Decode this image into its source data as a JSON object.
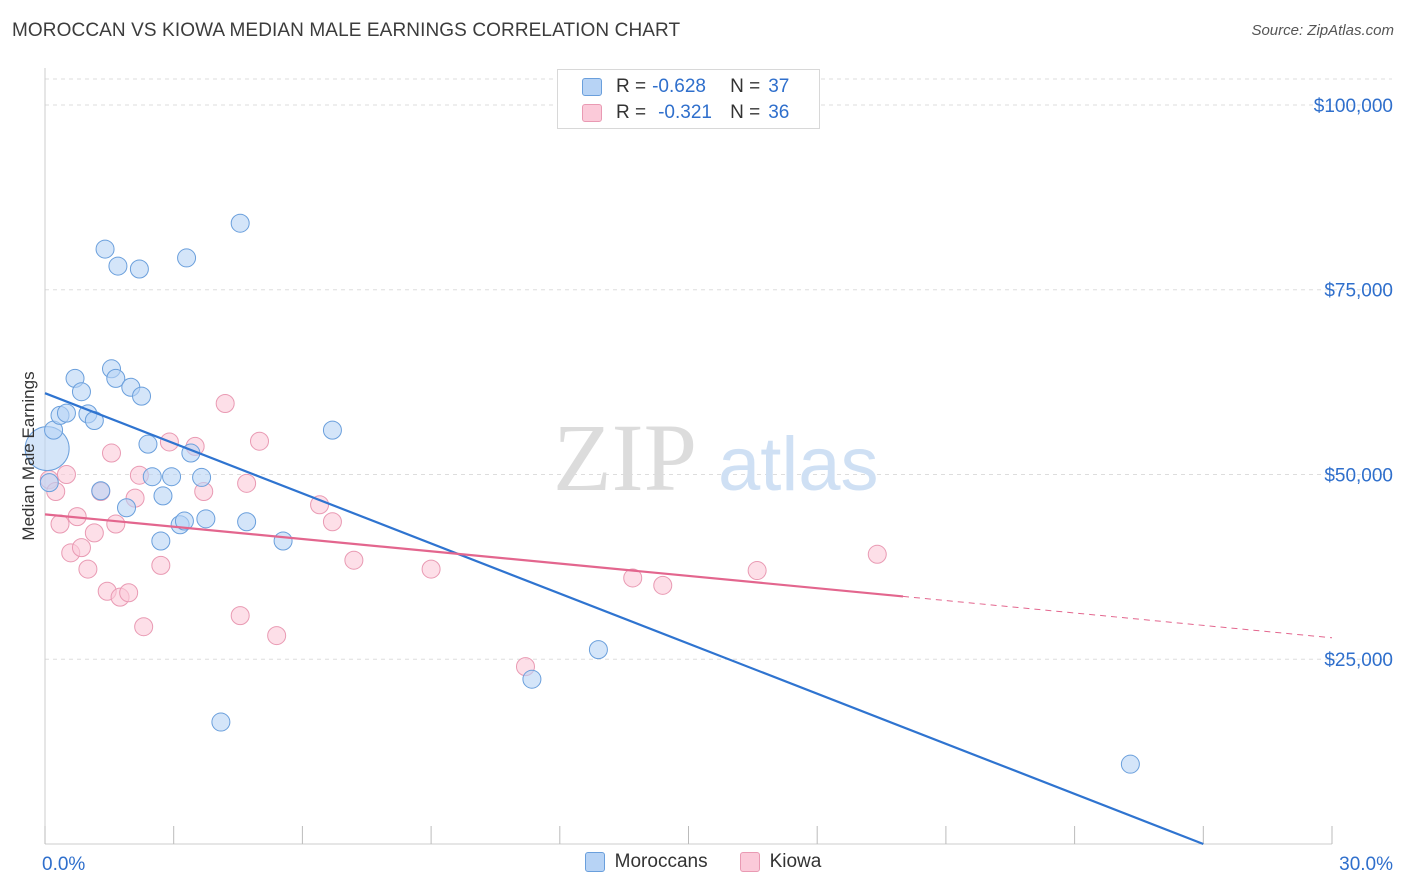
{
  "title": "MOROCCAN VS KIOWA MEDIAN MALE EARNINGS CORRELATION CHART",
  "source": "Source: ZipAtlas.com",
  "watermark": {
    "zip": "ZIP",
    "atlas": "atlas"
  },
  "legend": {
    "rows": [
      {
        "r_label": "R =",
        "r_value": "-0.628",
        "n_label": "N =",
        "n_value": "37"
      },
      {
        "r_label": "R =",
        "r_value": "-0.321",
        "n_label": "N =",
        "n_value": "36"
      }
    ]
  },
  "colors": {
    "moroccans_fill": "#b7d3f5",
    "moroccans_stroke": "#6a9fdc",
    "moroccans_line": "#2f74d0",
    "kiowa_fill": "#fbcad9",
    "kiowa_stroke": "#e99ab3",
    "kiowa_line": "#e3668e",
    "axis_label": "#2f6fcc",
    "grid": "#dddddd"
  },
  "chart_data": {
    "type": "scatter",
    "title": "MOROCCAN VS KIOWA MEDIAN MALE EARNINGS CORRELATION CHART",
    "xlabel": "",
    "ylabel": "Median Male Earnings",
    "xlim": [
      0,
      30
    ],
    "ylim": [
      0,
      105000
    ],
    "x_tick_labels": [
      "0.0%",
      "30.0%"
    ],
    "y_ticks": [
      25000,
      50000,
      75000,
      100000
    ],
    "y_tick_labels": [
      "$25,000",
      "$50,000",
      "$75,000",
      "$100,000"
    ],
    "grid": true,
    "legend_position": "top-center",
    "series": [
      {
        "name": "Moroccans",
        "r": -0.628,
        "n": 37,
        "trend": {
          "x": [
            0,
            27
          ],
          "y": [
            61000,
            0
          ]
        },
        "points": [
          {
            "x": 0.05,
            "y": 53500,
            "big": true
          },
          {
            "x": 0.2,
            "y": 56000
          },
          {
            "x": 0.35,
            "y": 58000
          },
          {
            "x": 0.5,
            "y": 58300
          },
          {
            "x": 0.7,
            "y": 63000
          },
          {
            "x": 0.85,
            "y": 61200
          },
          {
            "x": 1.0,
            "y": 58200
          },
          {
            "x": 1.15,
            "y": 57300
          },
          {
            "x": 1.3,
            "y": 47800
          },
          {
            "x": 1.4,
            "y": 80500
          },
          {
            "x": 1.55,
            "y": 64300
          },
          {
            "x": 1.65,
            "y": 63000
          },
          {
            "x": 1.7,
            "y": 78200
          },
          {
            "x": 1.9,
            "y": 45500
          },
          {
            "x": 2.0,
            "y": 61800
          },
          {
            "x": 2.2,
            "y": 77800
          },
          {
            "x": 2.25,
            "y": 60600
          },
          {
            "x": 2.4,
            "y": 54100
          },
          {
            "x": 2.5,
            "y": 49700
          },
          {
            "x": 2.7,
            "y": 41000
          },
          {
            "x": 2.75,
            "y": 47100
          },
          {
            "x": 2.95,
            "y": 49700
          },
          {
            "x": 3.15,
            "y": 43200
          },
          {
            "x": 3.25,
            "y": 43700
          },
          {
            "x": 3.3,
            "y": 79300
          },
          {
            "x": 3.4,
            "y": 52900
          },
          {
            "x": 3.65,
            "y": 49600
          },
          {
            "x": 3.75,
            "y": 44000
          },
          {
            "x": 4.1,
            "y": 16500
          },
          {
            "x": 4.55,
            "y": 84000
          },
          {
            "x": 4.7,
            "y": 43600
          },
          {
            "x": 5.55,
            "y": 41000
          },
          {
            "x": 6.7,
            "y": 56000
          },
          {
            "x": 11.35,
            "y": 22300
          },
          {
            "x": 12.9,
            "y": 26300
          },
          {
            "x": 25.3,
            "y": 10800
          },
          {
            "x": 0.1,
            "y": 48900
          }
        ]
      },
      {
        "name": "Kiowa",
        "r": -0.321,
        "n": 36,
        "trend": {
          "x": [
            0,
            20
          ],
          "y": [
            44600,
            33500
          ]
        },
        "trend_extension": {
          "x": [
            20,
            30
          ],
          "y": [
            33500,
            27900
          ]
        },
        "points": [
          {
            "x": 0.1,
            "y": 49300
          },
          {
            "x": 0.25,
            "y": 47700
          },
          {
            "x": 0.35,
            "y": 43300
          },
          {
            "x": 0.5,
            "y": 50000
          },
          {
            "x": 0.6,
            "y": 39400
          },
          {
            "x": 0.75,
            "y": 44300
          },
          {
            "x": 0.85,
            "y": 40100
          },
          {
            "x": 1.0,
            "y": 37200
          },
          {
            "x": 1.15,
            "y": 42100
          },
          {
            "x": 1.3,
            "y": 47700
          },
          {
            "x": 1.45,
            "y": 34200
          },
          {
            "x": 1.55,
            "y": 52900
          },
          {
            "x": 1.65,
            "y": 43300
          },
          {
            "x": 1.75,
            "y": 33400
          },
          {
            "x": 1.95,
            "y": 34000
          },
          {
            "x": 2.1,
            "y": 46800
          },
          {
            "x": 2.2,
            "y": 49900
          },
          {
            "x": 2.3,
            "y": 29400
          },
          {
            "x": 2.7,
            "y": 37700
          },
          {
            "x": 2.9,
            "y": 54400
          },
          {
            "x": 3.5,
            "y": 53800
          },
          {
            "x": 3.7,
            "y": 47700
          },
          {
            "x": 4.2,
            "y": 59600
          },
          {
            "x": 4.55,
            "y": 30900
          },
          {
            "x": 4.7,
            "y": 48800
          },
          {
            "x": 5.0,
            "y": 54500
          },
          {
            "x": 5.4,
            "y": 28200
          },
          {
            "x": 6.4,
            "y": 45900
          },
          {
            "x": 6.7,
            "y": 43600
          },
          {
            "x": 7.2,
            "y": 38400
          },
          {
            "x": 9.0,
            "y": 37200
          },
          {
            "x": 11.2,
            "y": 24000
          },
          {
            "x": 13.7,
            "y": 36000
          },
          {
            "x": 14.4,
            "y": 35000
          },
          {
            "x": 16.6,
            "y": 37000
          },
          {
            "x": 19.4,
            "y": 39200
          }
        ]
      }
    ]
  }
}
